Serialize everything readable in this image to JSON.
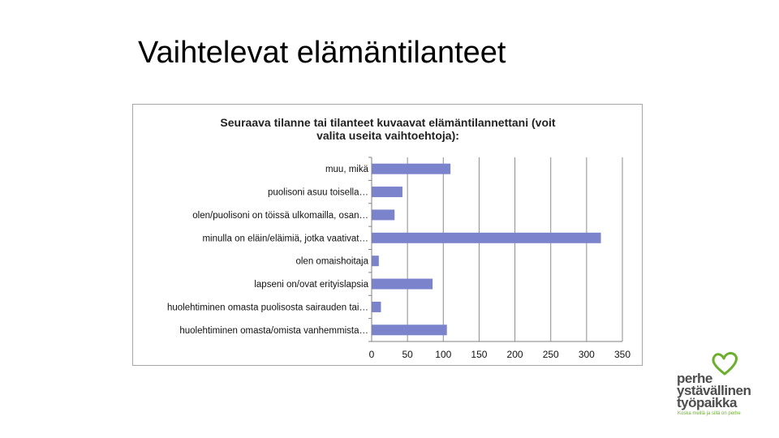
{
  "slide": {
    "title": "Vaihtelevat elämäntilanteet"
  },
  "chart_data": {
    "type": "bar",
    "orientation": "horizontal",
    "title": "Seuraava tilanne tai tilanteet kuvaavat elämäntilannettani (voit valita useita vaihtoehtoja):",
    "title_lines": [
      "Seuraava tilanne tai tilanteet kuvaavat elämäntilannettani (voit",
      "valita useita vaihtoehtoja):"
    ],
    "categories": [
      "muu, mikä",
      "puolisoni asuu toisella…",
      "olen/puolisoni on töissä ulkomailla, osan…",
      "minulla on eläin/eläimiä, jotka vaativat…",
      "olen omaishoitaja",
      "lapseni on/ovat erityislapsia",
      "huolehtiminen omasta puolisosta sairauden tai…",
      "huolehtiminen omasta/omista vanhemmista…"
    ],
    "values": [
      110,
      43,
      32,
      320,
      10,
      85,
      13,
      105
    ],
    "xlim": [
      0,
      350
    ],
    "xticks": [
      "0",
      "50",
      "100",
      "150",
      "200",
      "250",
      "300",
      "350"
    ],
    "grid": true,
    "bar_color": "#7b83cc",
    "grid_color": "#8c8c8c"
  },
  "logo": {
    "words": [
      "perhe",
      "ystävällinen",
      "työpaikka"
    ],
    "tagline": "Koska meillä ja sillä on perhe",
    "colors": {
      "text": "#4d4d4d",
      "accent": "#6cae2d"
    },
    "icon": "heart-icon"
  }
}
